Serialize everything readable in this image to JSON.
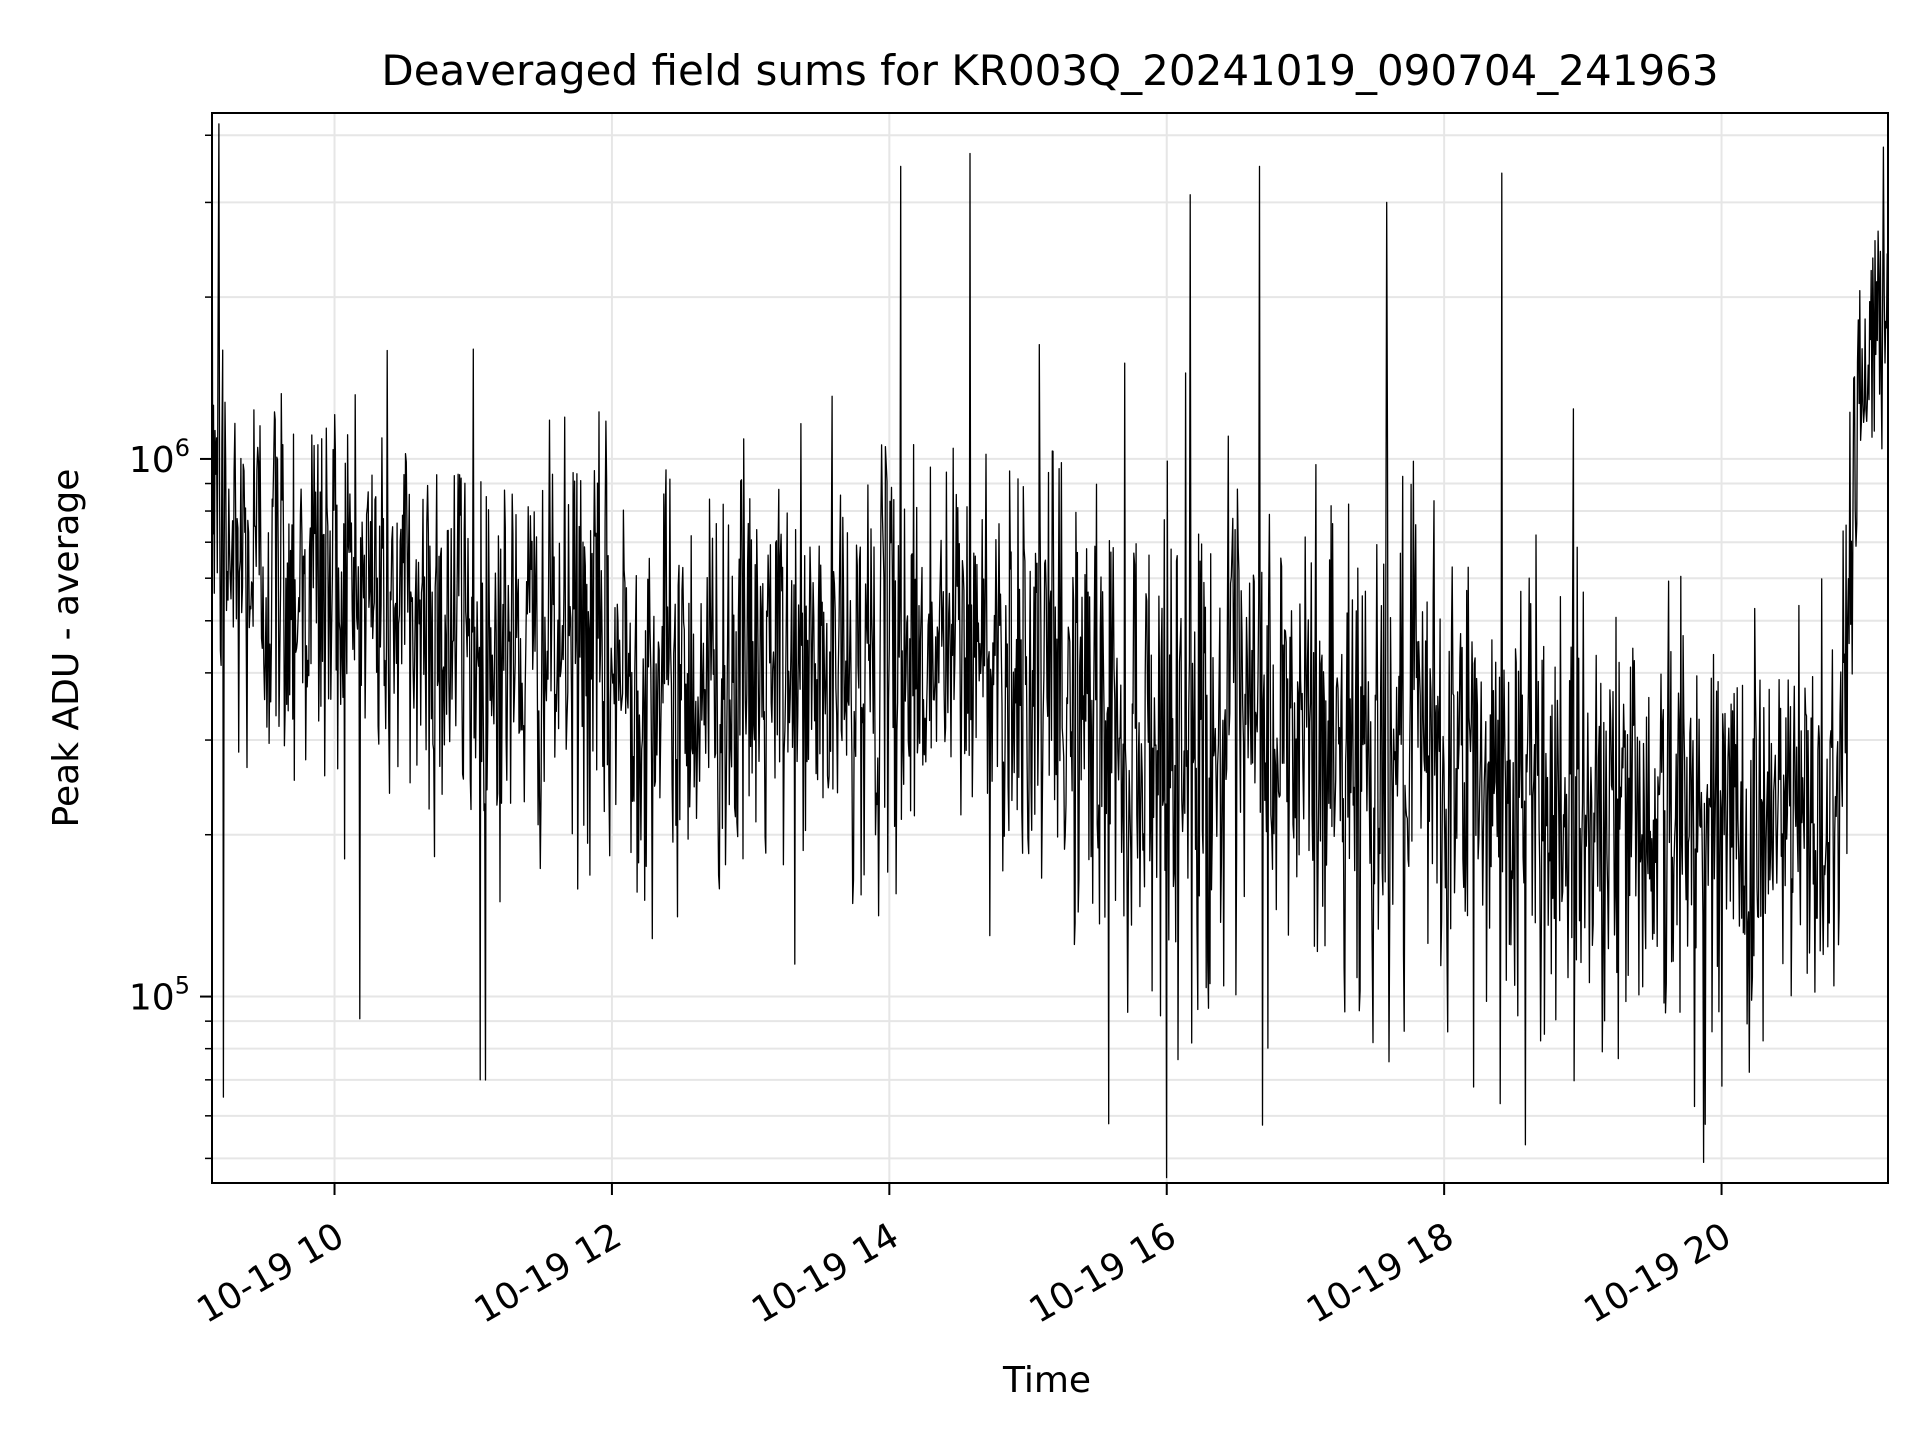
{
  "chart_data": {
    "type": "line",
    "title": "Deaveraged field sums for KR003Q_20241019_090704_241963",
    "xlabel": "Time",
    "ylabel": "Peak ADU - average",
    "x_scale": "time",
    "y_scale": "log",
    "xlim": [
      "2024-10-19 09:07",
      "2024-10-19 21:12"
    ],
    "ylim": [
      45000,
      4400000
    ],
    "x_ticks": [
      "2024-10-19 10:00",
      "2024-10-19 12:00",
      "2024-10-19 14:00",
      "2024-10-19 16:00",
      "2024-10-19 18:00",
      "2024-10-19 20:00"
    ],
    "x_tick_labels": [
      "10-19 10",
      "10-19 12",
      "10-19 14",
      "10-19 16",
      "10-19 18",
      "10-19 20"
    ],
    "y_major_ticks": [
      100000,
      1000000
    ],
    "y_major_tick_labels": [
      "10",
      "10"
    ],
    "y_major_tick_exponents": [
      "5",
      "6"
    ],
    "y_minor_ticks": [
      50000,
      60000,
      70000,
      80000,
      90000,
      200000,
      300000,
      400000,
      500000,
      600000,
      700000,
      800000,
      900000,
      2000000,
      3000000,
      4000000
    ],
    "grid": true,
    "legend": "none",
    "line_color": "#000000",
    "grid_color": "#e6e6e6",
    "series": [
      {
        "x": [
          "2024-10-19 09:07",
          "2024-10-19 09:15",
          "2024-10-19 09:30",
          "2024-10-19 09:45",
          "2024-10-19 10:00",
          "2024-10-19 10:15",
          "2024-10-19 10:30",
          "2024-10-19 10:45",
          "2024-10-19 11:00",
          "2024-10-19 11:15",
          "2024-10-19 11:30",
          "2024-10-19 11:45",
          "2024-10-19 12:00",
          "2024-10-19 12:30",
          "2024-10-19 13:00",
          "2024-10-19 13:30",
          "2024-10-19 14:00",
          "2024-10-19 14:30",
          "2024-10-19 15:00",
          "2024-10-19 15:30",
          "2024-10-19 16:00",
          "2024-10-19 16:30",
          "2024-10-19 17:00",
          "2024-10-19 17:30",
          "2024-10-19 18:00",
          "2024-10-19 18:30",
          "2024-10-19 19:00",
          "2024-10-19 19:30",
          "2024-10-19 20:00",
          "2024-10-19 20:30",
          "2024-10-19 20:50",
          "2024-10-19 21:00",
          "2024-10-19 21:12"
        ],
        "y": [
          1100000,
          650000,
          620000,
          600000,
          590000,
          570000,
          520000,
          500000,
          470000,
          430000,
          440000,
          460000,
          400000,
          380000,
          400000,
          390000,
          420000,
          450000,
          420000,
          320000,
          300000,
          290000,
          300000,
          290000,
          260000,
          240000,
          230000,
          220000,
          200000,
          210000,
          230000,
          1500000,
          1700000
        ],
        "spread_dex": [
          0.38,
          0.34,
          0.32,
          0.32,
          0.32,
          0.32,
          0.33,
          0.33,
          0.32,
          0.3,
          0.28,
          0.3,
          0.32,
          0.3,
          0.3,
          0.3,
          0.3,
          0.3,
          0.32,
          0.36,
          0.38,
          0.38,
          0.38,
          0.38,
          0.36,
          0.36,
          0.34,
          0.32,
          0.32,
          0.32,
          0.34,
          0.22,
          0.2
        ],
        "spikes": [
          {
            "x": "2024-10-19 09:10",
            "y": 4200000
          },
          {
            "x": "2024-10-19 09:12",
            "y": 65000
          },
          {
            "x": "2024-10-19 11:00",
            "y": 1600000
          },
          {
            "x": "2024-10-19 11:03",
            "y": 70000
          },
          {
            "x": "2024-10-19 14:05",
            "y": 3500000
          },
          {
            "x": "2024-10-19 14:35",
            "y": 3700000
          },
          {
            "x": "2024-10-19 15:35",
            "y": 58000
          },
          {
            "x": "2024-10-19 16:10",
            "y": 3100000
          },
          {
            "x": "2024-10-19 16:40",
            "y": 3500000
          },
          {
            "x": "2024-10-19 17:35",
            "y": 3000000
          },
          {
            "x": "2024-10-19 18:25",
            "y": 3400000
          },
          {
            "x": "2024-10-19 18:35",
            "y": 53000
          },
          {
            "x": "2024-10-19 21:10",
            "y": 3800000
          }
        ]
      }
    ]
  }
}
